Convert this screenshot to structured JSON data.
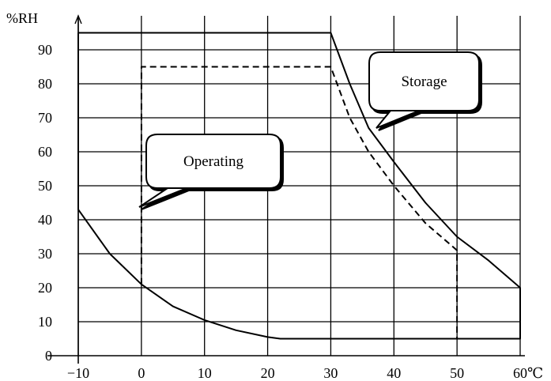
{
  "chart_data": {
    "type": "line",
    "title": "",
    "xlabel": "",
    "ylabel": "",
    "x_unit": "℃",
    "y_unit": "%RH",
    "xlim": [
      -10,
      60
    ],
    "ylim": [
      0,
      100
    ],
    "x_ticks": [
      -10,
      0,
      10,
      20,
      30,
      40,
      50,
      60
    ],
    "x_tick_labels": [
      "−10",
      "0",
      "10",
      "20",
      "30",
      "40",
      "50",
      "60"
    ],
    "y_ticks": [
      0,
      10,
      20,
      30,
      40,
      50,
      60,
      70,
      80,
      90
    ],
    "y_tick_labels": [
      "0",
      "10",
      "20",
      "30",
      "40",
      "50",
      "60",
      "70",
      "80",
      "90"
    ],
    "grid": true,
    "series": [
      {
        "name": "Storage",
        "line_style": "solid",
        "points": [
          [
            -10,
            95
          ],
          [
            30,
            95
          ],
          [
            33,
            80
          ],
          [
            36,
            67
          ],
          [
            40,
            57
          ],
          [
            45,
            45
          ],
          [
            50,
            35
          ],
          [
            55,
            28
          ],
          [
            60,
            20
          ],
          [
            60,
            5
          ],
          [
            22,
            5
          ],
          [
            20,
            5.5
          ],
          [
            15,
            7.5
          ],
          [
            10,
            10.5
          ],
          [
            5,
            14.5
          ],
          [
            0,
            21
          ],
          [
            -5,
            30
          ],
          [
            -10,
            43
          ],
          [
            -10,
            95
          ]
        ]
      },
      {
        "name": "Operating",
        "line_style": "dashed",
        "points": [
          [
            0,
            21
          ],
          [
            0,
            85
          ],
          [
            30,
            85
          ],
          [
            33,
            70
          ],
          [
            36,
            60
          ],
          [
            40,
            50
          ],
          [
            45,
            39
          ],
          [
            50,
            31
          ],
          [
            50,
            5
          ]
        ]
      }
    ],
    "annotations": [
      {
        "text": "Storage",
        "target": "Storage"
      },
      {
        "text": "Operating",
        "target": "Operating"
      }
    ]
  }
}
